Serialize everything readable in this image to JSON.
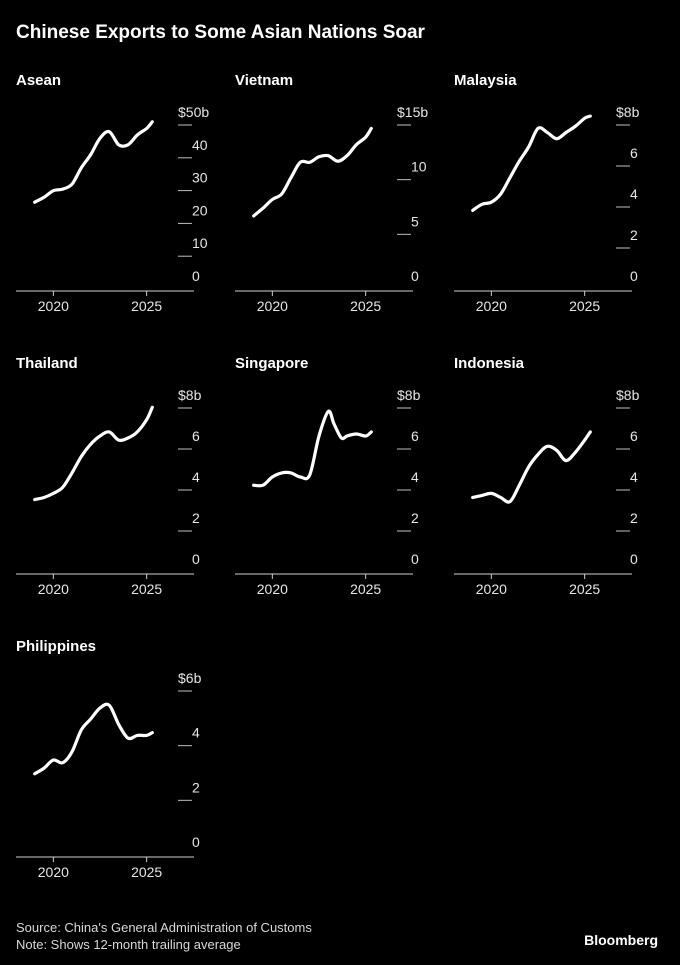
{
  "title": "Chinese Exports to Some Asian Nations Soar",
  "source": "Source: China's General Administration of Customs",
  "note": "Note: Shows 12-month trailing average",
  "brand": "Bloomberg",
  "chart_data": [
    {
      "type": "line",
      "title": "Asean",
      "unit_prefix": "$",
      "unit_suffix": "b",
      "ylim": [
        0,
        50
      ],
      "yticks": [
        0,
        10,
        20,
        30,
        40,
        50
      ],
      "xticks": [
        2020,
        2025
      ],
      "xlim": [
        2018.0,
        2027.0
      ],
      "x": [
        2019.0,
        2019.5,
        2020.0,
        2020.5,
        2021.0,
        2021.5,
        2022.0,
        2022.5,
        2023.0,
        2023.5,
        2024.0,
        2024.5,
        2025.0,
        2025.3
      ],
      "values": [
        22.5,
        24,
        26,
        26.5,
        28,
        33,
        37,
        42,
        44,
        40,
        40,
        43,
        45,
        47
      ],
      "color": "#ffffff"
    },
    {
      "type": "line",
      "title": "Vietnam",
      "unit_prefix": "$",
      "unit_suffix": "b",
      "ylim": [
        0,
        15
      ],
      "yticks": [
        0,
        5,
        10,
        15
      ],
      "xticks": [
        2020,
        2025
      ],
      "xlim": [
        2018.0,
        2027.0
      ],
      "x": [
        2019.0,
        2019.5,
        2020.0,
        2020.5,
        2021.0,
        2021.5,
        2022.0,
        2022.5,
        2023.0,
        2023.5,
        2024.0,
        2024.5,
        2025.0,
        2025.3
      ],
      "values": [
        5.5,
        6.2,
        7.0,
        7.5,
        9.0,
        10.4,
        10.4,
        10.9,
        11.0,
        10.5,
        11.0,
        12.0,
        12.7,
        13.5
      ],
      "color": "#ffffff"
    },
    {
      "type": "line",
      "title": "Malaysia",
      "unit_prefix": "$",
      "unit_suffix": "b",
      "ylim": [
        0,
        8
      ],
      "yticks": [
        0,
        2,
        4,
        6,
        8
      ],
      "xticks": [
        2020,
        2025
      ],
      "xlim": [
        2018.0,
        2027.0
      ],
      "x": [
        2019.0,
        2019.5,
        2020.0,
        2020.5,
        2021.0,
        2021.5,
        2022.0,
        2022.5,
        2023.0,
        2023.5,
        2024.0,
        2024.5,
        2025.0,
        2025.3
      ],
      "values": [
        3.2,
        3.5,
        3.6,
        4.0,
        4.8,
        5.6,
        6.3,
        7.2,
        7.0,
        6.7,
        7.0,
        7.3,
        7.7,
        7.8
      ],
      "color": "#ffffff"
    },
    {
      "type": "line",
      "title": "Thailand",
      "unit_prefix": "$",
      "unit_suffix": "b",
      "ylim": [
        0,
        8
      ],
      "yticks": [
        0,
        2,
        4,
        6,
        8
      ],
      "xticks": [
        2020,
        2025
      ],
      "xlim": [
        2018.0,
        2027.0
      ],
      "x": [
        2019.0,
        2019.5,
        2020.0,
        2020.5,
        2021.0,
        2021.5,
        2022.0,
        2022.5,
        2023.0,
        2023.5,
        2024.0,
        2024.5,
        2025.0,
        2025.3
      ],
      "values": [
        2.9,
        3.0,
        3.2,
        3.5,
        4.2,
        5.0,
        5.6,
        6.0,
        6.2,
        5.8,
        5.9,
        6.2,
        6.8,
        7.4
      ],
      "color": "#ffffff"
    },
    {
      "type": "line",
      "title": "Singapore",
      "unit_prefix": "$",
      "unit_suffix": "b",
      "ylim": [
        0,
        8
      ],
      "yticks": [
        0,
        2,
        4,
        6,
        8
      ],
      "xticks": [
        2020,
        2025
      ],
      "xlim": [
        2018.0,
        2027.0
      ],
      "x": [
        2019.0,
        2019.5,
        2020.0,
        2020.5,
        2021.0,
        2021.5,
        2022.0,
        2022.5,
        2023.0,
        2023.3,
        2023.7,
        2024.0,
        2024.5,
        2025.0,
        2025.3
      ],
      "values": [
        3.6,
        3.6,
        4.0,
        4.2,
        4.2,
        4.0,
        4.1,
        6.0,
        7.2,
        6.6,
        5.9,
        6.0,
        6.1,
        6.0,
        6.2
      ],
      "color": "#ffffff"
    },
    {
      "type": "line",
      "title": "Indonesia",
      "unit_prefix": "$",
      "unit_suffix": "b",
      "ylim": [
        0,
        8
      ],
      "yticks": [
        0,
        2,
        4,
        6,
        8
      ],
      "xticks": [
        2020,
        2025
      ],
      "xlim": [
        2018.0,
        2027.0
      ],
      "x": [
        2019.0,
        2019.5,
        2020.0,
        2020.5,
        2021.0,
        2021.5,
        2022.0,
        2022.5,
        2023.0,
        2023.5,
        2024.0,
        2024.5,
        2025.0,
        2025.3
      ],
      "values": [
        3.0,
        3.1,
        3.2,
        3.0,
        2.8,
        3.6,
        4.5,
        5.1,
        5.5,
        5.3,
        4.8,
        5.2,
        5.8,
        6.2
      ],
      "color": "#ffffff"
    },
    {
      "type": "line",
      "title": "Philippines",
      "unit_prefix": "$",
      "unit_suffix": "b",
      "ylim": [
        0,
        6
      ],
      "yticks": [
        0,
        2,
        4,
        6
      ],
      "xticks": [
        2020,
        2025
      ],
      "xlim": [
        2018.0,
        2027.0
      ],
      "x": [
        2019.0,
        2019.5,
        2020.0,
        2020.5,
        2021.0,
        2021.5,
        2022.0,
        2022.5,
        2023.0,
        2023.5,
        2024.0,
        2024.5,
        2025.0,
        2025.3
      ],
      "values": [
        2.5,
        2.7,
        3.0,
        2.9,
        3.3,
        4.1,
        4.5,
        4.9,
        5.0,
        4.3,
        3.8,
        3.9,
        3.9,
        4.0
      ],
      "color": "#ffffff"
    }
  ]
}
